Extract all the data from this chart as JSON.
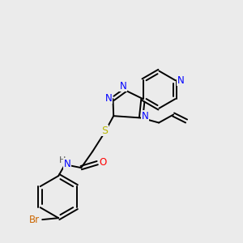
{
  "background_color": "#ebebeb",
  "bond_color": "#000000",
  "atom_colors": {
    "N": "#0000ff",
    "O": "#ff0000",
    "S": "#b8b800",
    "Br": "#cc6600",
    "H": "#555555",
    "C": "#000000"
  },
  "figsize": [
    3.0,
    3.0
  ],
  "dpi": 100
}
